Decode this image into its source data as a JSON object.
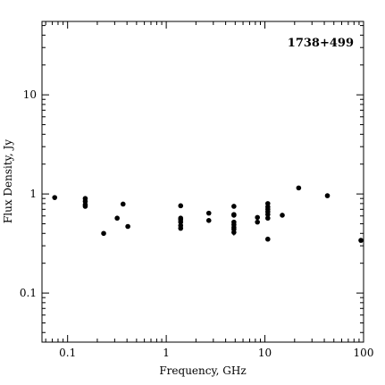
{
  "chart_data": {
    "type": "scatter",
    "title": "1738+499",
    "xlabel": "Frequency, GHz",
    "ylabel": "Flux Density, Jy",
    "xscale": "log",
    "yscale": "log",
    "xlim": [
      0.055,
      100
    ],
    "ylim": [
      0.032,
      55
    ],
    "xticks": [
      {
        "value": 0.1,
        "label": "0.1"
      },
      {
        "value": 1,
        "label": "1"
      },
      {
        "value": 10,
        "label": "10"
      },
      {
        "value": 100,
        "label": "100"
      }
    ],
    "yticks": [
      {
        "value": 0.1,
        "label": "0.1"
      },
      {
        "value": 1,
        "label": "1"
      },
      {
        "value": 10,
        "label": "10"
      }
    ],
    "grid": false,
    "legend": "none",
    "marker_color": "#000000",
    "series": [
      {
        "points": [
          {
            "x": 0.074,
            "y": 0.92
          },
          {
            "x": 0.151,
            "y": 0.9
          },
          {
            "x": 0.151,
            "y": 0.84
          },
          {
            "x": 0.151,
            "y": 0.78
          },
          {
            "x": 0.151,
            "y": 0.75
          },
          {
            "x": 0.232,
            "y": 0.4
          },
          {
            "x": 0.318,
            "y": 0.57
          },
          {
            "x": 0.365,
            "y": 0.79
          },
          {
            "x": 0.408,
            "y": 0.47
          },
          {
            "x": 1.4,
            "y": 0.76
          },
          {
            "x": 1.4,
            "y": 0.57
          },
          {
            "x": 1.4,
            "y": 0.55
          },
          {
            "x": 1.4,
            "y": 0.52
          },
          {
            "x": 1.4,
            "y": 0.48
          },
          {
            "x": 1.4,
            "y": 0.45
          },
          {
            "x": 2.7,
            "y": 0.64
          },
          {
            "x": 2.7,
            "y": 0.54
          },
          {
            "x": 4.85,
            "y": 0.75
          },
          {
            "x": 4.85,
            "y": 0.62
          },
          {
            "x": 4.85,
            "y": 0.61
          },
          {
            "x": 4.85,
            "y": 0.52
          },
          {
            "x": 4.85,
            "y": 0.49
          },
          {
            "x": 4.85,
            "y": 0.46
          },
          {
            "x": 4.85,
            "y": 0.44
          },
          {
            "x": 4.85,
            "y": 0.41,
            "yerr": 0.03
          },
          {
            "x": 8.4,
            "y": 0.58
          },
          {
            "x": 8.4,
            "y": 0.52
          },
          {
            "x": 10.7,
            "y": 0.8
          },
          {
            "x": 10.7,
            "y": 0.74
          },
          {
            "x": 10.7,
            "y": 0.7
          },
          {
            "x": 10.7,
            "y": 0.66
          },
          {
            "x": 10.7,
            "y": 0.62
          },
          {
            "x": 10.7,
            "y": 0.57
          },
          {
            "x": 10.7,
            "y": 0.35
          },
          {
            "x": 15,
            "y": 0.61
          },
          {
            "x": 22,
            "y": 1.15
          },
          {
            "x": 43,
            "y": 0.96
          },
          {
            "x": 94,
            "y": 0.34
          }
        ]
      }
    ]
  }
}
